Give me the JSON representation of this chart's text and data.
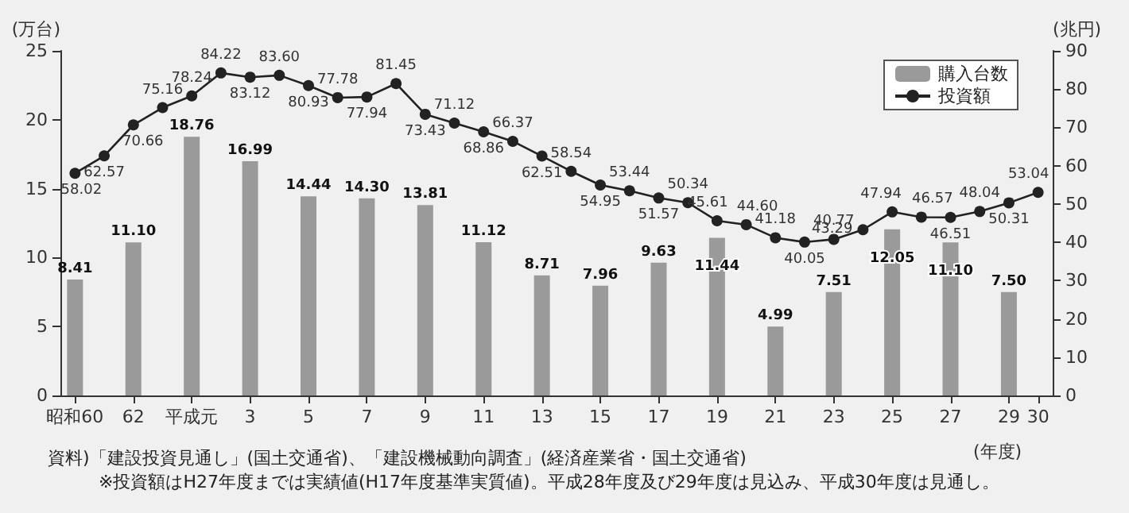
{
  "chart_data": {
    "type": "bar",
    "ylabel": "(万台)",
    "y2label": "(兆円)",
    "xlabel": "(年度)",
    "categories": [
      "昭和60",
      null,
      "62",
      null,
      "平成元",
      null,
      "3",
      null,
      "5",
      null,
      "7",
      null,
      "9",
      null,
      "11",
      null,
      "13",
      null,
      "15",
      null,
      "17",
      null,
      "19",
      null,
      "21",
      null,
      "23",
      null,
      "25",
      null,
      "27",
      null,
      "29",
      "30"
    ],
    "series": [
      {
        "name": "購入台数",
        "color": "#9a9a9a",
        "values": [
          8.41,
          null,
          11.1,
          null,
          18.76,
          null,
          16.99,
          null,
          14.44,
          null,
          14.3,
          null,
          13.81,
          null,
          11.12,
          null,
          8.71,
          null,
          7.96,
          null,
          9.63,
          null,
          11.44,
          null,
          4.99,
          null,
          7.51,
          null,
          12.05,
          null,
          11.1,
          null,
          7.5,
          null
        ],
        "value_labels": [
          "8.41",
          null,
          "11.10",
          null,
          "18.76",
          null,
          "16.99",
          null,
          "14.44",
          null,
          "14.30",
          null,
          "13.81",
          null,
          "11.12",
          null,
          "8.71",
          null,
          "7.96",
          null,
          "9.63",
          null,
          "11.44",
          null,
          "4.99",
          null,
          "7.51",
          null,
          "12.05",
          null,
          "11.10",
          null,
          "7.50",
          null
        ]
      },
      {
        "name": "投資額",
        "type": "line",
        "axis": "y2",
        "color": "#222222",
        "marker": "circle",
        "values": [
          58.02,
          62.57,
          70.66,
          75.16,
          78.24,
          84.22,
          83.12,
          83.6,
          80.93,
          77.78,
          77.94,
          81.45,
          73.43,
          71.12,
          68.86,
          66.37,
          62.51,
          58.54,
          54.95,
          53.44,
          51.57,
          50.34,
          45.61,
          44.6,
          41.18,
          40.05,
          40.77,
          43.29,
          47.94,
          46.57,
          46.51,
          48.04,
          50.31,
          53.04
        ],
        "value_labels": [
          "58.02",
          "62.57",
          "70.66",
          "75.16",
          "78.24",
          "84.22",
          "83.12",
          "83.60",
          "80.93",
          "77.78",
          "77.94",
          "81.45",
          "73.43",
          "71.12",
          "68.86",
          "66.37",
          "62.51",
          "58.54",
          "54.95",
          "53.44",
          "51.57",
          "50.34",
          "45.61",
          "44.60",
          "41.18",
          "40.05",
          "40.77",
          "43.29",
          "47.94",
          "46.57",
          "46.51",
          "48.04",
          "50.31",
          "53.04"
        ]
      }
    ],
    "ylim": [
      0,
      25
    ],
    "yticks": [
      0,
      5,
      10,
      15,
      20,
      25
    ],
    "y2lim": [
      0,
      90
    ],
    "y2ticks": [
      0,
      10,
      20,
      30,
      40,
      50,
      60,
      70,
      80,
      90
    ],
    "legend": "top right",
    "grid": false,
    "line_style": "solid",
    "annotations": [
      "資料)「建設投資見通し」(国土交通省)、「建設機械動向調査」(経済産業省・国土交通省)",
      "※投資額はH27年度までは実績値(H17年度基準実質値)。平成28年度及び29年度は見込み、平成30年度は見通し。"
    ]
  }
}
